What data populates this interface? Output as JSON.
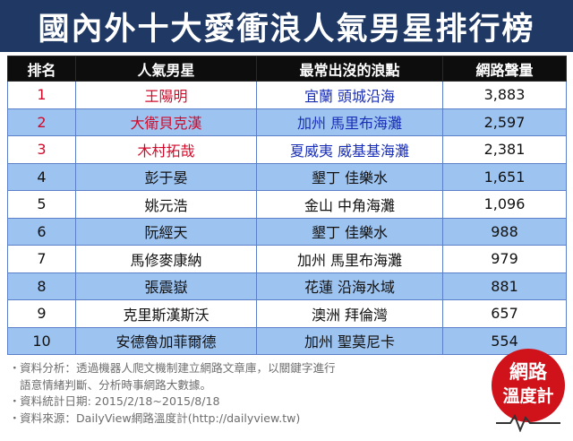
{
  "title": "國內外十大愛衝浪人氣男星排行榜",
  "headers": [
    "排名",
    "人氣男星",
    "最常出沒的浪點",
    "網路聲量"
  ],
  "rows": [
    {
      "rank": "1",
      "name": "王陽明",
      "spot": "宜蘭 頭城沿海",
      "volume": "3,883"
    },
    {
      "rank": "2",
      "name": "大衛貝克漢",
      "spot": "加州 馬里布海灘",
      "volume": "2,597"
    },
    {
      "rank": "3",
      "name": "木村拓哉",
      "spot": "夏威夷 威基基海灘",
      "volume": "2,381"
    },
    {
      "rank": "4",
      "name": "彭于晏",
      "spot": "墾丁 佳樂水",
      "volume": "1,651"
    },
    {
      "rank": "5",
      "name": "姚元浩",
      "spot": "金山 中角海灘",
      "volume": "1,096"
    },
    {
      "rank": "6",
      "name": "阮經天",
      "spot": "墾丁 佳樂水",
      "volume": "988"
    },
    {
      "rank": "7",
      "name": "馬修麥康納",
      "spot": "加州 馬里布海灘",
      "volume": "979"
    },
    {
      "rank": "8",
      "name": "張震嶽",
      "spot": "花蓮 沿海水域",
      "volume": "881"
    },
    {
      "rank": "9",
      "name": "克里斯漢斯沃",
      "spot": "澳洲 拜倫灣",
      "volume": "657"
    },
    {
      "rank": "10",
      "name": "安德魯加菲爾德",
      "spot": "加州 聖莫尼卡",
      "volume": "554"
    }
  ],
  "notes": {
    "bullet": "・",
    "analysis_1": "資料分析：透過機器人爬文機制建立網路文章庫，以關鍵字進行",
    "analysis_2": "語意情緒判斷、分析時事網路大數據。",
    "period": "資料統計日期: 2015/2/18~2015/8/18",
    "source": "資料來源：DailyView網路溫度計(http://dailyview.tw)"
  },
  "logo": {
    "line1": "網路",
    "line2": "溫度計",
    "color": "#d0121b"
  },
  "colors": {
    "title_bg": "#1f3864",
    "header_bg": "#0d0d0d",
    "row_blue": "#9dc3f0",
    "top3_name": "#d10a2a",
    "top3_spot": "#1a2fb8"
  }
}
